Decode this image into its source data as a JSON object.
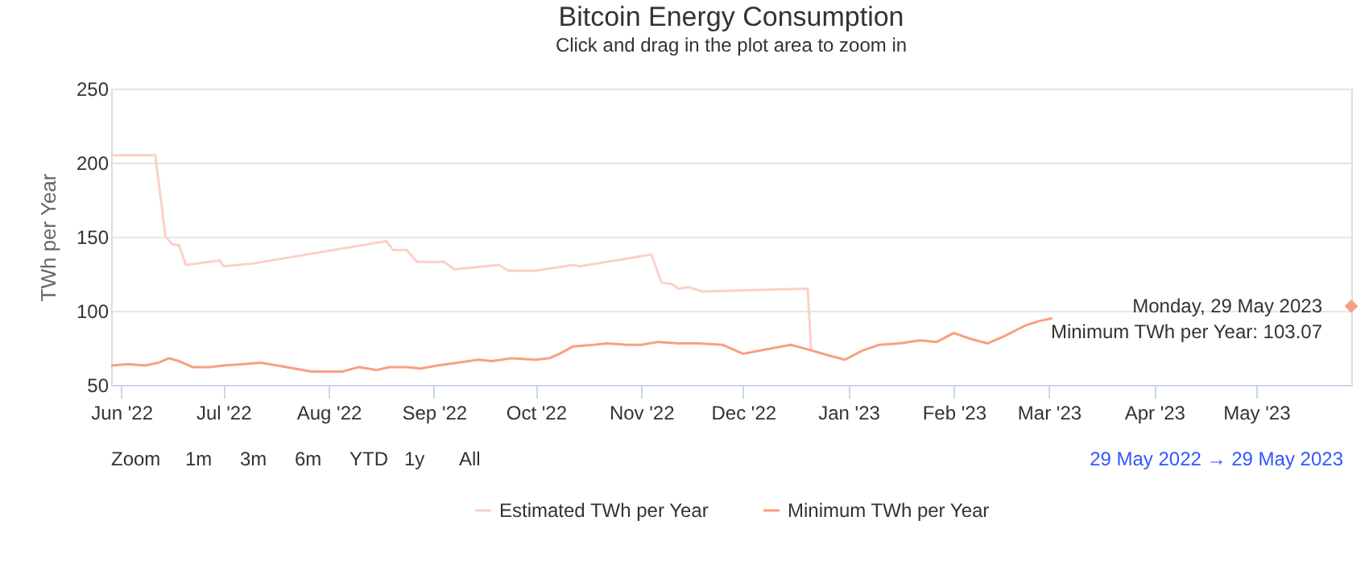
{
  "chart_data": {
    "type": "line",
    "title": "Bitcoin Energy Consumption",
    "subtitle": "Click and drag in the plot area to zoom in",
    "ylabel": "TWh per Year",
    "xlim": [
      "2022-05-29",
      "2023-05-29"
    ],
    "ylim": [
      50,
      250
    ],
    "yticks": [
      50,
      100,
      150,
      200,
      250
    ],
    "xticks": [
      {
        "value": "2022-06-01",
        "label": "Jun '22"
      },
      {
        "value": "2022-07-01",
        "label": "Jul '22"
      },
      {
        "value": "2022-08-01",
        "label": "Aug '22"
      },
      {
        "value": "2022-09-01",
        "label": "Sep '22"
      },
      {
        "value": "2022-10-01",
        "label": "Oct '22"
      },
      {
        "value": "2022-11-01",
        "label": "Nov '22"
      },
      {
        "value": "2022-12-01",
        "label": "Dec '22"
      },
      {
        "value": "2023-01-01",
        "label": "Jan '23"
      },
      {
        "value": "2023-02-01",
        "label": "Feb '23"
      },
      {
        "value": "2023-03-01",
        "label": "Mar '23"
      },
      {
        "value": "2023-04-01",
        "label": "Apr '23"
      },
      {
        "value": "2023-05-01",
        "label": "May '23"
      }
    ],
    "grid": "y",
    "legend": "bottom",
    "marker": "none",
    "line_style": "solid",
    "series": [
      {
        "name": "Estimated TWh per Year",
        "color": "#fbd0c8",
        "x": [
          "2022-05-29",
          "2022-06-11",
          "2022-06-14",
          "2022-06-16",
          "2022-06-18",
          "2022-06-20",
          "2022-06-30",
          "2022-07-01",
          "2022-07-10",
          "2022-08-18",
          "2022-08-20",
          "2022-08-24",
          "2022-08-27",
          "2022-09-04",
          "2022-09-07",
          "2022-09-20",
          "2022-09-23",
          "2022-10-01",
          "2022-10-12",
          "2022-10-14",
          "2022-11-04",
          "2022-11-07",
          "2022-11-10",
          "2022-11-12",
          "2022-11-15",
          "2022-11-19",
          "2022-12-20",
          "2022-12-21"
        ],
        "values": [
          205,
          205,
          150,
          145,
          144,
          131,
          134,
          130,
          132,
          147,
          141,
          141,
          133,
          133,
          128,
          131,
          127,
          127,
          131,
          130,
          138,
          119,
          118,
          115,
          116,
          113,
          115,
          74
        ]
      },
      {
        "name": "Minimum TWh per Year",
        "color": "#f7a080",
        "x": [
          "2022-05-29",
          "2022-06-03",
          "2022-06-08",
          "2022-06-12",
          "2022-06-15",
          "2022-06-18",
          "2022-06-22",
          "2022-06-27",
          "2022-07-01",
          "2022-07-07",
          "2022-07-12",
          "2022-07-17",
          "2022-07-22",
          "2022-07-27",
          "2022-08-01",
          "2022-08-05",
          "2022-08-10",
          "2022-08-15",
          "2022-08-19",
          "2022-08-24",
          "2022-08-28",
          "2022-09-02",
          "2022-09-08",
          "2022-09-14",
          "2022-09-18",
          "2022-09-24",
          "2022-10-01",
          "2022-10-05",
          "2022-10-08",
          "2022-10-12",
          "2022-10-18",
          "2022-10-22",
          "2022-10-28",
          "2022-11-01",
          "2022-11-06",
          "2022-11-12",
          "2022-11-18",
          "2022-11-25",
          "2022-12-01",
          "2022-12-08",
          "2022-12-15",
          "2022-12-20",
          "2022-12-26",
          "2022-12-31",
          "2023-01-05",
          "2023-01-10",
          "2023-01-16",
          "2023-01-22",
          "2023-01-27",
          "2023-02-01",
          "2023-02-06",
          "2023-02-11",
          "2023-02-16",
          "2023-02-22",
          "2023-02-26",
          "2023-03-02",
          "2023-03-05",
          "2023-05-29"
        ],
        "values": [
          63,
          64,
          63,
          65,
          68,
          66,
          62,
          62,
          63,
          64,
          65,
          63,
          61,
          59,
          59,
          59,
          62,
          60,
          62,
          62,
          61,
          63,
          65,
          67,
          66,
          68,
          67,
          68,
          71,
          76,
          77,
          78,
          77,
          77,
          79,
          78,
          78,
          77,
          71,
          74,
          77,
          74,
          70,
          67,
          73,
          77,
          78,
          80,
          79,
          85,
          81,
          78,
          83,
          90,
          93,
          95,
          null,
          103.07
        ]
      }
    ],
    "annotations": [
      "Zoom",
      "1m",
      "3m",
      "6m",
      "YTD",
      "1y",
      "All",
      "29 May 2022 → 29 May 2023",
      {
        "text": "Monday, 29 May 2023\nMinimum TWh per Year: 103.07",
        "x": "2023-05-29",
        "y": 103.07
      }
    ]
  }
}
